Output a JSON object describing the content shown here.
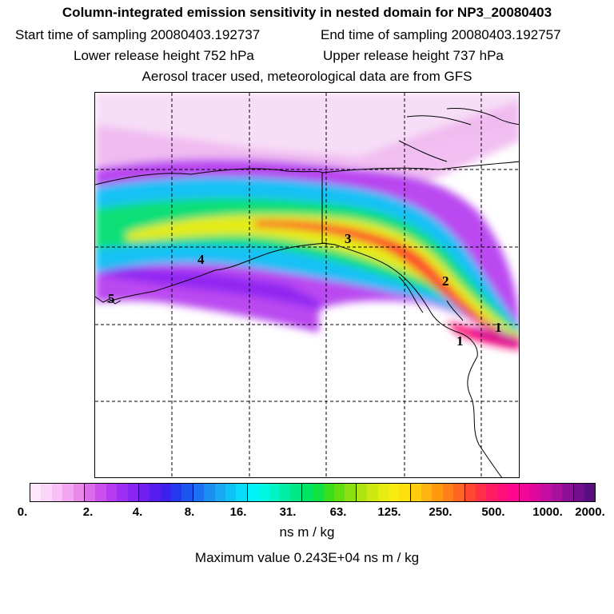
{
  "title": "Column-integrated emission sensitivity in nested domain for NP3_20080403",
  "start_label": "Start time of sampling 20080403.192737",
  "end_label": "End time of sampling 20080403.192757",
  "lower_label": "Lower release height  752 hPa",
  "upper_label": "Upper release height  737 hPa",
  "tracer_label": "Aerosol tracer used, meteorological data are from GFS",
  "markers": [
    "1",
    "2",
    "3",
    "4",
    "5"
  ],
  "colorbar": {
    "tick_labels": [
      "0.",
      "2.",
      "4.",
      "8.",
      "16.",
      "31.",
      "63.",
      "125.",
      "250.",
      "500.",
      "1000.",
      "2000."
    ],
    "colors": [
      "#fde8fd",
      "#fbd6fb",
      "#f7c0f7",
      "#f2a6f2",
      "#e98ae9",
      "#dc6ce8",
      "#cb4fee",
      "#b53af2",
      "#9d2ff4",
      "#8a24f2",
      "#6f1ff0",
      "#541cee",
      "#3b20ee",
      "#2439ee",
      "#1c55ee",
      "#1a72f0",
      "#1a8ff2",
      "#1aa8f4",
      "#10c3f6",
      "#08dcf8",
      "#00f2fa",
      "#00f7e2",
      "#00f3c3",
      "#00eea3",
      "#00e784",
      "#00e464",
      "#10e040",
      "#38dd1c",
      "#62dd10",
      "#8ae010",
      "#aee410",
      "#cce810",
      "#e6ec10",
      "#f6ec10",
      "#fce010",
      "#ffcc10",
      "#ffb410",
      "#ff9a10",
      "#ff8018",
      "#ff6424",
      "#ff4834",
      "#ff3048",
      "#ff1c60",
      "#ff1078",
      "#ff0890",
      "#f00898",
      "#dc089c",
      "#c40ca0",
      "#a8109e",
      "#8c1096",
      "#70108c",
      "#581080"
    ]
  },
  "units_label": "ns m / kg",
  "max_label": "Maximum value  0.243E+04 ns m / kg"
}
